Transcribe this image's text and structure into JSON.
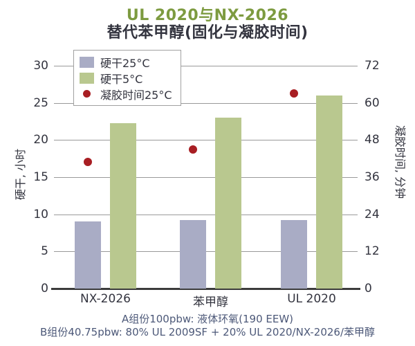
{
  "chart_data": {
    "type": "bar",
    "title": "UL 2020与NX-2026",
    "subtitle": "替代苯甲醇(固化与凝胶时间)",
    "categories": [
      "NX-2026",
      "苯甲醇",
      "UL 2020"
    ],
    "series": [
      {
        "name": "硬干25°C",
        "kind": "bar",
        "axis": "left",
        "color": "#a9acc5",
        "values": [
          9.0,
          9.2,
          9.2
        ]
      },
      {
        "name": "硬干5°C",
        "kind": "bar",
        "axis": "left",
        "color": "#b9c88f",
        "values": [
          22.3,
          23.0,
          26.0
        ]
      },
      {
        "name": "凝胶时间25°C",
        "kind": "scatter",
        "axis": "right",
        "color": "#a81e23",
        "values": [
          41,
          45,
          63
        ]
      }
    ],
    "left_axis": {
      "label": "硬干, 小时",
      "min": 0,
      "max": 30,
      "ticks": [
        0,
        5,
        10,
        15,
        20,
        25,
        30
      ]
    },
    "right_axis": {
      "label": "凝胶时间, 分钟",
      "min": 0,
      "max": 72,
      "ticks": [
        0,
        12,
        24,
        36,
        48,
        60,
        72
      ]
    },
    "grid": true,
    "legend_position": "top-left-inside"
  },
  "footnotes": {
    "line1": "A组份100pbw: 液体环氧(190 EEW)",
    "line2": "B组份40.75pbw: 80% UL 2009SF + 20% UL 2020/NX-2026/苯甲醇"
  },
  "colors": {
    "title_green": "#7d9b40",
    "text_dark": "#33343f",
    "footnote_blue": "#4c5878",
    "gridline": "#999999",
    "axis_line": "#3b3b3b",
    "legend_border": "#a0a0a0"
  }
}
